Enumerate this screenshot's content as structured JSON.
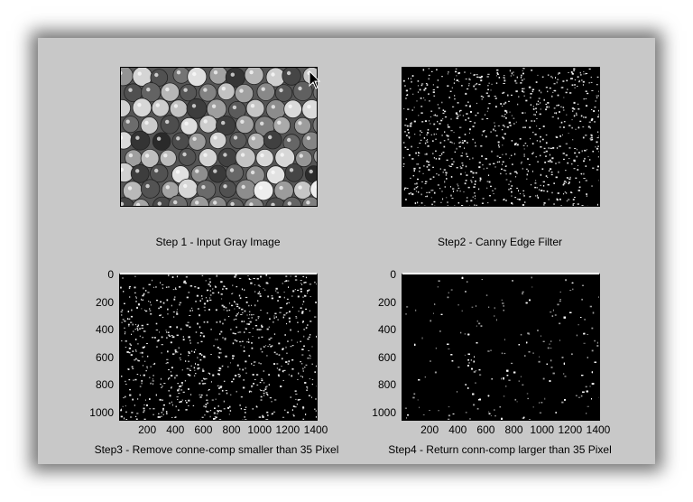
{
  "figure": {
    "panels": [
      {
        "id": "step1",
        "caption": "Step 1 - Input Gray Image"
      },
      {
        "id": "step2",
        "caption": "Step2 - Canny Edge Filter"
      },
      {
        "id": "step3",
        "caption": "Step3 - Remove conne-comp smaller than 35 Pixel"
      },
      {
        "id": "step4",
        "caption": "Step4 - Return conn-comp larger than 35 Pixel"
      }
    ],
    "axes": {
      "y_ticks": [
        "0",
        "200",
        "400",
        "600",
        "800",
        "1000"
      ],
      "x_ticks": [
        "200",
        "400",
        "600",
        "800",
        "1000",
        "1200",
        "1400"
      ]
    }
  },
  "colors": {
    "window_bg": "#c8c8c8",
    "image_bg": "#000000",
    "edge_pixels": "#ffffff"
  },
  "cursor": {
    "icon": "mouse-pointer-icon"
  }
}
